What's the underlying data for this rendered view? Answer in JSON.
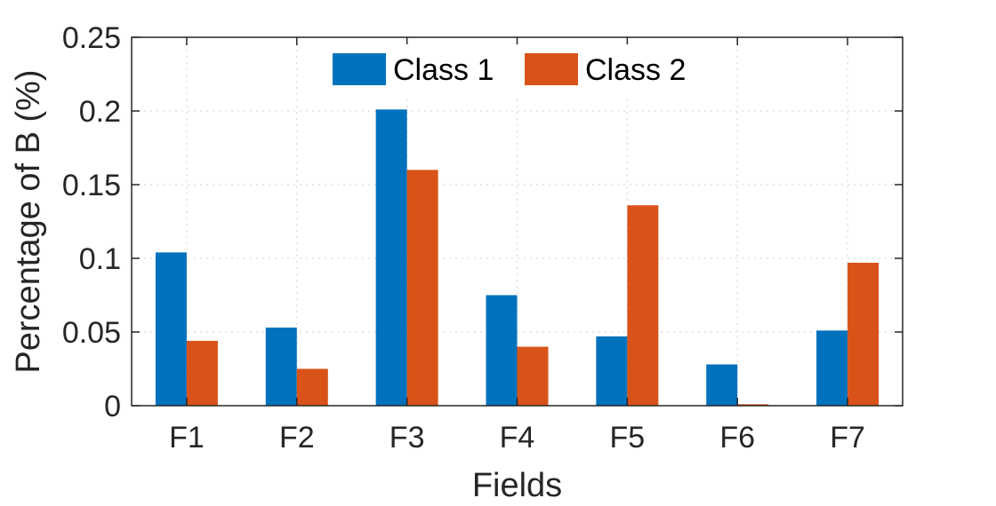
{
  "chart_data": {
    "type": "bar",
    "title": "",
    "xlabel": "Fields",
    "ylabel": "Percentage of B (%)",
    "categories": [
      "F1",
      "F2",
      "F3",
      "F4",
      "F5",
      "F6",
      "F7"
    ],
    "series": [
      {
        "name": "Class 1",
        "color": "#0072BD",
        "values": [
          0.104,
          0.053,
          0.201,
          0.075,
          0.047,
          0.028,
          0.051
        ]
      },
      {
        "name": "Class 2",
        "color": "#D95319",
        "values": [
          0.044,
          0.025,
          0.16,
          0.04,
          0.136,
          0.001,
          0.097
        ]
      }
    ],
    "ylim": [
      0,
      0.25
    ],
    "yticks": [
      "0",
      "0.05",
      "0.1",
      "0.15",
      "0.2",
      "0.25"
    ],
    "grid": true,
    "legend": "top-center, horizontal"
  }
}
